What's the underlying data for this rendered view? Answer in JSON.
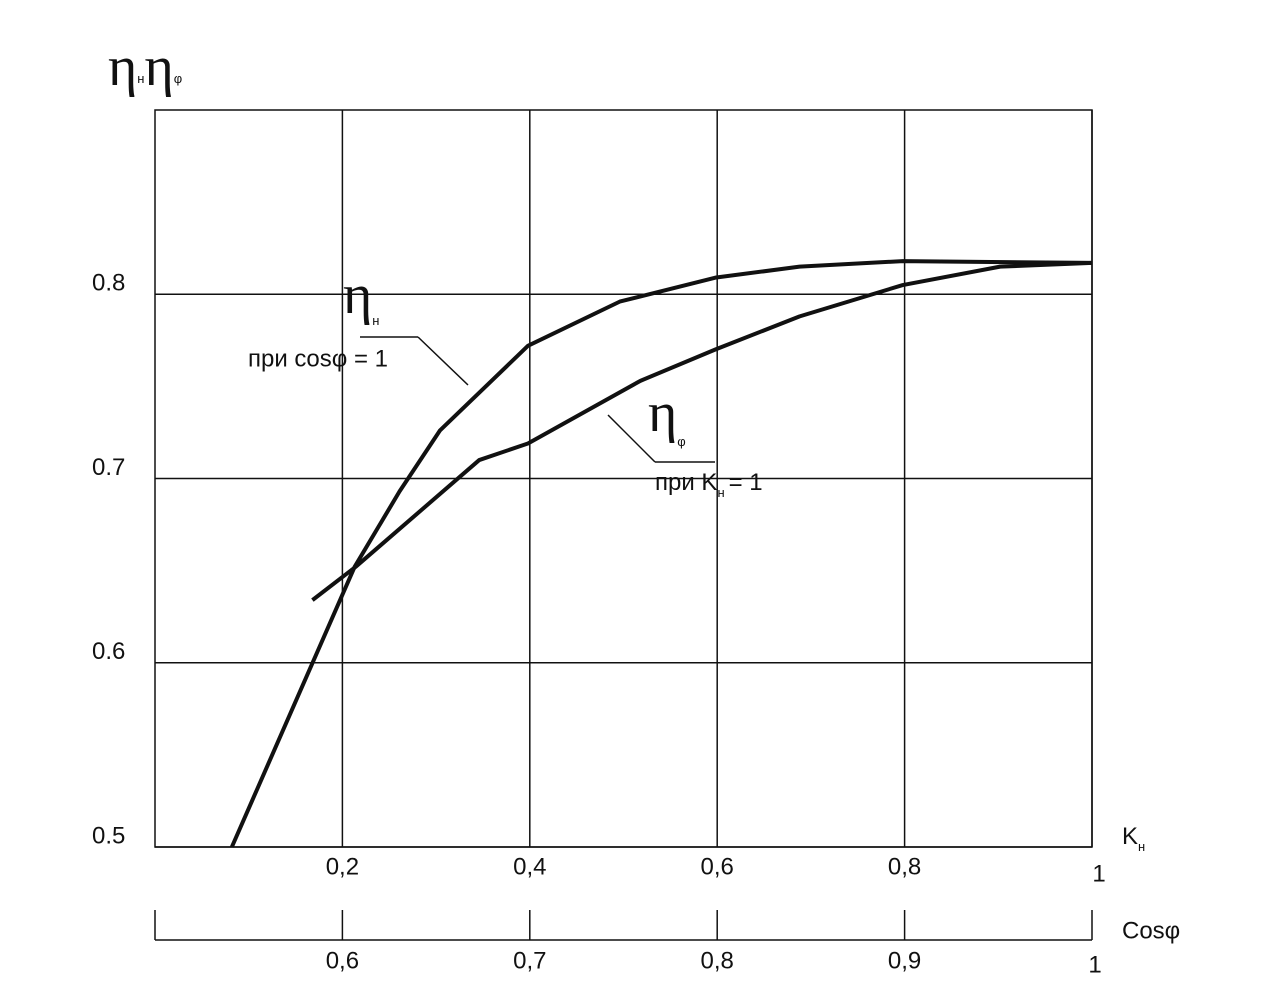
{
  "chart_data": {
    "type": "line",
    "ylabel": {
      "symbol1": "η",
      "sub1": "н",
      "symbol2": "η",
      "sub2": "φ"
    },
    "xlabel": {
      "symbol": "K",
      "sub": "н"
    },
    "x2label": "Cosφ",
    "xlim": [
      0,
      1
    ],
    "xticks": [
      {
        "value": 0.2,
        "label": "0,2"
      },
      {
        "value": 0.4,
        "label": "0,4"
      },
      {
        "value": 0.6,
        "label": "0,6"
      },
      {
        "value": 0.8,
        "label": "0,8"
      },
      1
    ],
    "x2lim": [
      0.5,
      1
    ],
    "x2ticks": [
      {
        "value": 0.6,
        "label": "0,6"
      },
      {
        "value": 0.7,
        "label": "0,7"
      },
      {
        "value": 0.8,
        "label": "0,8"
      },
      {
        "value": 0.9,
        "label": "0,9"
      },
      1
    ],
    "ylim": [
      0.5,
      0.9
    ],
    "yticks": [
      0.5,
      0.6,
      0.7,
      0.8
    ],
    "grid": true,
    "series": [
      {
        "color": "#111111",
        "xaxis": "x",
        "x": [
          0.082,
          0.213,
          0.261,
          0.304,
          0.398,
          0.496,
          0.598,
          0.688,
          0.798,
          1
        ],
        "values": [
          0.5,
          0.652,
          0.693,
          0.726,
          0.772,
          0.796,
          0.809,
          0.815,
          0.818,
          0.817
        ]
      },
      {
        "color": "#111111",
        "xaxis": "x2",
        "x": [
          0.584,
          0.607,
          0.673,
          0.699,
          0.759,
          0.799,
          0.844,
          0.899,
          0.951,
          1
        ],
        "values": [
          0.634,
          0.652,
          0.71,
          0.719,
          0.753,
          0.77,
          0.788,
          0.805,
          0.815,
          0.817
        ]
      }
    ],
    "annotations": [
      {
        "symbol": "η",
        "sub": "н",
        "text": "при cosφ = 1"
      },
      {
        "symbol": "η",
        "sub": "φ",
        "text": "при K",
        "text_sub": "н",
        "text_end": "= 1"
      }
    ]
  }
}
